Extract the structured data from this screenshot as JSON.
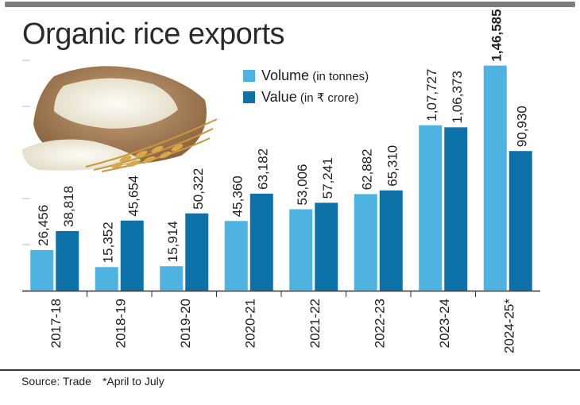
{
  "title": "Organic rice exports",
  "legend": [
    {
      "label": "Volume",
      "unit": " (in tonnes)",
      "color": "#4eb3e0"
    },
    {
      "label": "Value",
      "unit": " (in ₹ crore)",
      "color": "#0d72a8"
    }
  ],
  "footer": {
    "source": "Source: Trade",
    "note": "*April to July"
  },
  "chart_data": {
    "type": "bar",
    "title": "Organic rice exports",
    "categories": [
      "2017-18",
      "2018-19",
      "2019-20",
      "2020-21",
      "2021-22",
      "2022-23",
      "2023-24",
      "2024-25*"
    ],
    "series": [
      {
        "name": "Volume (in tonnes)",
        "color": "#4eb3e0",
        "values": [
          26456,
          15352,
          15914,
          45360,
          53006,
          62882,
          107727,
          146585
        ],
        "labels": [
          "26,456",
          "15,352",
          "15,914",
          "45,360",
          "53,006",
          "62,882",
          "1,07,727",
          "1,46,585"
        ]
      },
      {
        "name": "Value (in ₹ crore)",
        "color": "#0d72a8",
        "values": [
          38818,
          45654,
          50322,
          63182,
          57241,
          65310,
          106373,
          90930
        ],
        "labels": [
          "38,818",
          "45,654",
          "50,322",
          "63,182",
          "57,241",
          "65,310",
          "1,06,373",
          "90,930"
        ]
      }
    ],
    "ylim": [
      0,
      150000
    ],
    "grid": true,
    "legend": "top"
  }
}
